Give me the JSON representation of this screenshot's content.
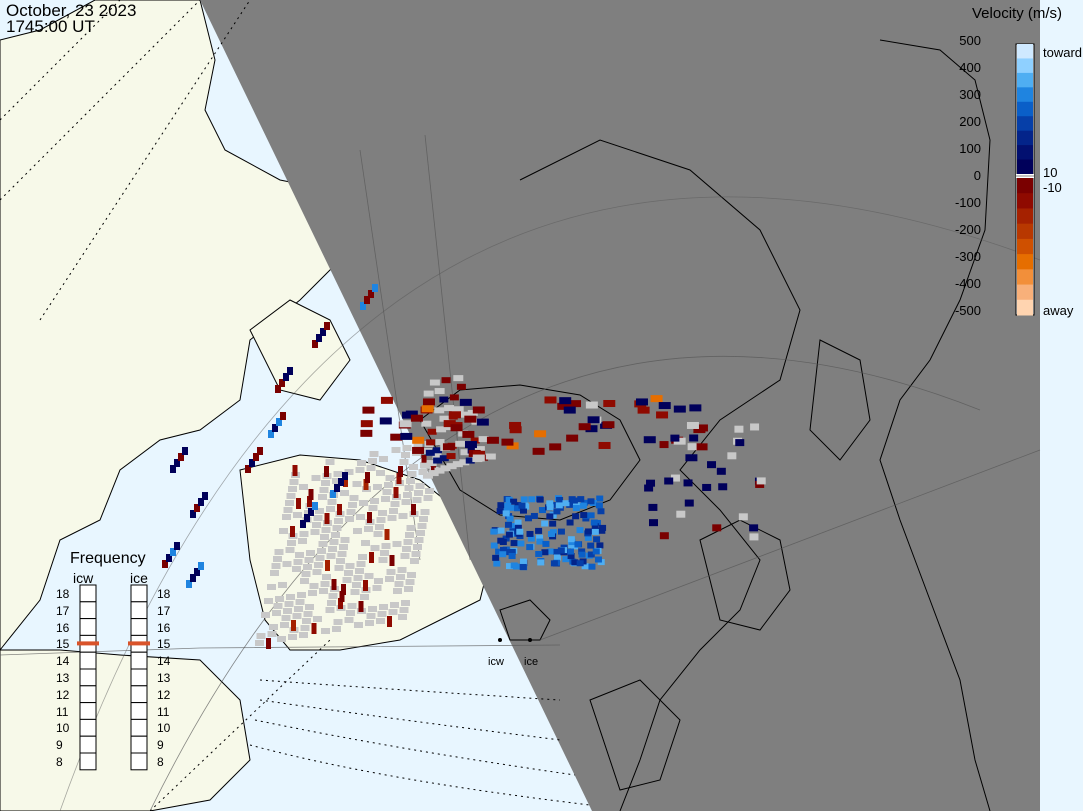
{
  "timestamp": {
    "date": "October, 23 2023",
    "time": "1745:00 UT"
  },
  "colorbar": {
    "title": "Velocity (m/s)",
    "left_ticks": [
      "500",
      "400",
      "300",
      "200",
      "100",
      "0",
      "-100",
      "-200",
      "-300",
      "-400",
      "-500"
    ],
    "toward_label": "toward",
    "away_label": "away",
    "small_ticks": [
      "10",
      "-10"
    ],
    "toward_colors": [
      "#cfe9ff",
      "#8fd0ff",
      "#4faef2",
      "#1f84e0",
      "#0a5fc8",
      "#063fa8",
      "#03248a",
      "#021070",
      "#00005a"
    ],
    "away_colors": [
      "#7a0000",
      "#8f0a00",
      "#a52100",
      "#b83800",
      "#cf5000",
      "#e66e00",
      "#f28f3a",
      "#f8b07a",
      "#ffd4b0"
    ]
  },
  "frequency": {
    "title": "Frequency",
    "columns": [
      "icw",
      "ice"
    ],
    "levels": [
      "18",
      "17",
      "16",
      "15",
      "14",
      "13",
      "12",
      "11",
      "10",
      "9",
      "8"
    ],
    "selected": "15"
  },
  "radars": [
    "icw",
    "ice"
  ],
  "map": {
    "night_color": "#7f7f7f",
    "ocean_color": "#e8f6ff",
    "land_color": "#f7f9e9",
    "ground_scatter_color": "#c8c8c8"
  }
}
